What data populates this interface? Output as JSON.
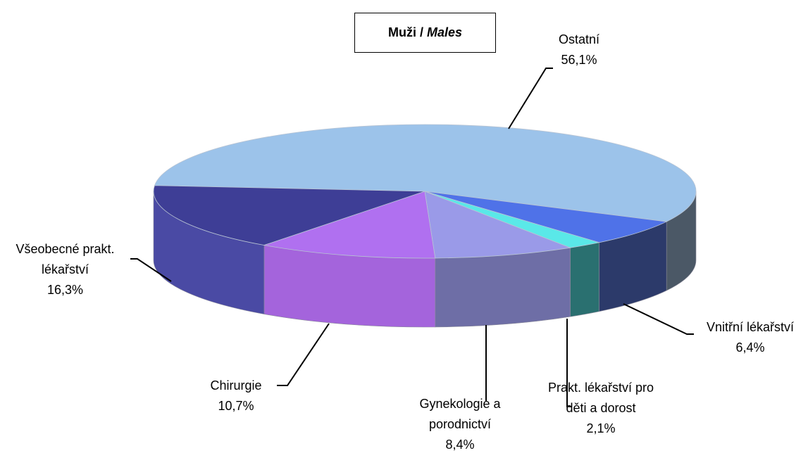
{
  "chart_data": {
    "type": "pie3d",
    "title_cz": "Muži /",
    "title_en": "Males",
    "categories": [
      "Ostatní",
      "Vnitřní lékařství",
      "Prakt. lékařství pro děti a dorost",
      "Gynekologie a porodnictví",
      "Chirurgie",
      "Všeobecné prakt. lékařství"
    ],
    "values": [
      56.1,
      6.4,
      2.1,
      8.4,
      10.7,
      16.3
    ],
    "value_labels": [
      "56,1%",
      "6,4%",
      "2,1%",
      "8,4%",
      "10,7%",
      "16,3%"
    ],
    "colors": [
      "#9cc3ea",
      "#4f72e8",
      "#5ae8e8",
      "#9a9ae8",
      "#b070f0",
      "#3e3e96"
    ],
    "side_colors": [
      "#4b5866",
      "#2c3a6a",
      "#2a7070",
      "#6e6ea6",
      "#a464dc",
      "#4a4aa4"
    ]
  }
}
